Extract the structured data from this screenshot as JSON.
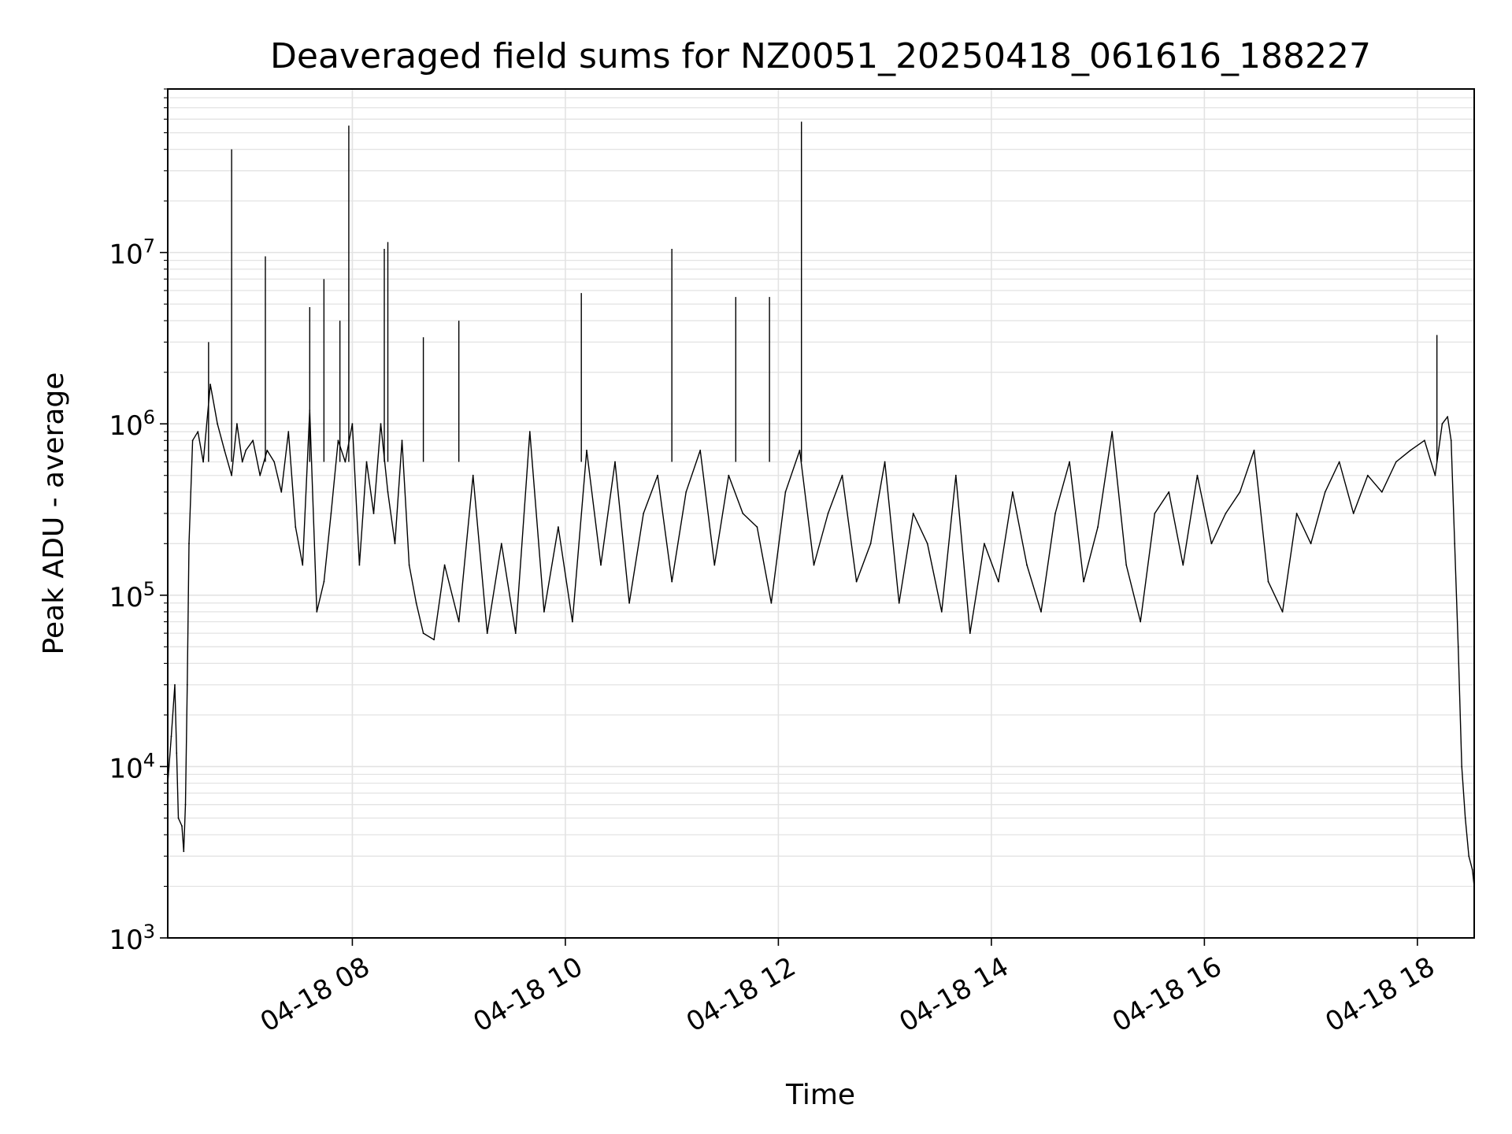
{
  "chart_data": {
    "type": "line",
    "title": "Deaveraged field sums for NZ0051_20250418_061616_188227",
    "xlabel": "Time",
    "ylabel": "Peak ADU - average",
    "yscale": "log",
    "ylim": [
      1000,
      90000000
    ],
    "xlim": [
      "04-18 06:16",
      "04-18 18:32"
    ],
    "grid": true,
    "x_ticks": [
      {
        "value": "04-18 08:00",
        "label": "04-18 08"
      },
      {
        "value": "04-18 10:00",
        "label": "04-18 10"
      },
      {
        "value": "04-18 12:00",
        "label": "04-18 12"
      },
      {
        "value": "04-18 14:00",
        "label": "04-18 14"
      },
      {
        "value": "04-18 16:00",
        "label": "04-18 16"
      },
      {
        "value": "04-18 18:00",
        "label": "04-18 18"
      }
    ],
    "y_ticks": [
      {
        "value": 1000,
        "base": "10",
        "exp": "3"
      },
      {
        "value": 10000,
        "base": "10",
        "exp": "4"
      },
      {
        "value": 100000,
        "base": "10",
        "exp": "5"
      },
      {
        "value": 1000000,
        "base": "10",
        "exp": "6"
      },
      {
        "value": 10000000,
        "base": "10",
        "exp": "7"
      }
    ],
    "series": [
      {
        "color": "#000000",
        "x": [
          "04-18 06:16",
          "04-18 06:18",
          "04-18 06:20",
          "04-18 06:21",
          "04-18 06:22",
          "04-18 06:24",
          "04-18 06:25",
          "04-18 06:26",
          "04-18 06:27",
          "04-18 06:28",
          "04-18 06:30",
          "04-18 06:33",
          "04-18 06:36",
          "04-18 06:40",
          "04-18 06:44",
          "04-18 06:48",
          "04-18 06:52",
          "04-18 06:55",
          "04-18 06:58",
          "04-18 07:00",
          "04-18 07:04",
          "04-18 07:08",
          "04-18 07:12",
          "04-18 07:16",
          "04-18 07:20",
          "04-18 07:24",
          "04-18 07:28",
          "04-18 07:32",
          "04-18 07:36",
          "04-18 07:40",
          "04-18 07:44",
          "04-18 07:48",
          "04-18 07:52",
          "04-18 07:56",
          "04-18 08:00",
          "04-18 08:04",
          "04-18 08:08",
          "04-18 08:12",
          "04-18 08:16",
          "04-18 08:20",
          "04-18 08:24",
          "04-18 08:28",
          "04-18 08:32",
          "04-18 08:36",
          "04-18 08:40",
          "04-18 08:46",
          "04-18 08:52",
          "04-18 09:00",
          "04-18 09:08",
          "04-18 09:16",
          "04-18 09:24",
          "04-18 09:32",
          "04-18 09:40",
          "04-18 09:48",
          "04-18 09:56",
          "04-18 10:04",
          "04-18 10:12",
          "04-18 10:20",
          "04-18 10:28",
          "04-18 10:36",
          "04-18 10:44",
          "04-18 10:52",
          "04-18 11:00",
          "04-18 11:08",
          "04-18 11:16",
          "04-18 11:24",
          "04-18 11:32",
          "04-18 11:40",
          "04-18 11:48",
          "04-18 11:56",
          "04-18 12:04",
          "04-18 12:12",
          "04-18 12:20",
          "04-18 12:28",
          "04-18 12:36",
          "04-18 12:44",
          "04-18 12:52",
          "04-18 13:00",
          "04-18 13:08",
          "04-18 13:16",
          "04-18 13:24",
          "04-18 13:32",
          "04-18 13:40",
          "04-18 13:48",
          "04-18 13:56",
          "04-18 14:04",
          "04-18 14:12",
          "04-18 14:20",
          "04-18 14:28",
          "04-18 14:36",
          "04-18 14:44",
          "04-18 14:52",
          "04-18 15:00",
          "04-18 15:08",
          "04-18 15:16",
          "04-18 15:24",
          "04-18 15:32",
          "04-18 15:40",
          "04-18 15:48",
          "04-18 15:56",
          "04-18 16:04",
          "04-18 16:12",
          "04-18 16:20",
          "04-18 16:28",
          "04-18 16:36",
          "04-18 16:44",
          "04-18 16:52",
          "04-18 17:00",
          "04-18 17:08",
          "04-18 17:16",
          "04-18 17:24",
          "04-18 17:32",
          "04-18 17:40",
          "04-18 17:48",
          "04-18 17:56",
          "04-18 18:04",
          "04-18 18:10",
          "04-18 18:14",
          "04-18 18:17",
          "04-18 18:19",
          "04-18 18:21",
          "04-18 18:23",
          "04-18 18:25",
          "04-18 18:27",
          "04-18 18:29",
          "04-18 18:31",
          "04-18 18:32"
        ],
        "y": [
          8000,
          15000,
          30000,
          12000,
          5000,
          4500,
          3200,
          6000,
          30000,
          200000,
          800000,
          900000,
          600000,
          1700000,
          1000000,
          700000,
          500000,
          1000000,
          600000,
          700000,
          800000,
          500000,
          700000,
          600000,
          400000,
          900000,
          250000,
          150000,
          1200000,
          80000,
          120000,
          300000,
          800000,
          600000,
          1000000,
          150000,
          600000,
          300000,
          1000000,
          400000,
          200000,
          800000,
          150000,
          90000,
          60000,
          55000,
          150000,
          70000,
          500000,
          60000,
          200000,
          60000,
          900000,
          80000,
          250000,
          70000,
          700000,
          150000,
          600000,
          90000,
          300000,
          500000,
          120000,
          400000,
          700000,
          150000,
          500000,
          300000,
          250000,
          90000,
          400000,
          700000,
          150000,
          300000,
          500000,
          120000,
          200000,
          600000,
          90000,
          300000,
          200000,
          80000,
          500000,
          60000,
          200000,
          120000,
          400000,
          150000,
          80000,
          300000,
          600000,
          120000,
          250000,
          900000,
          150000,
          70000,
          300000,
          400000,
          150000,
          500000,
          200000,
          300000,
          400000,
          700000,
          120000,
          80000,
          300000,
          200000,
          400000,
          600000,
          300000,
          500000,
          400000,
          600000,
          700000,
          800000,
          500000,
          1000000,
          1100000,
          800000,
          200000,
          50000,
          10000,
          5000,
          3000,
          2500,
          2000
        ]
      }
    ],
    "spikes": [
      {
        "x": "04-18 06:39",
        "y": 3000000
      },
      {
        "x": "04-18 06:52",
        "y": 40000000
      },
      {
        "x": "04-18 07:11",
        "y": 9500000
      },
      {
        "x": "04-18 07:36",
        "y": 4800000
      },
      {
        "x": "04-18 07:44",
        "y": 7000000
      },
      {
        "x": "04-18 07:53",
        "y": 4000000
      },
      {
        "x": "04-18 07:58",
        "y": 55000000
      },
      {
        "x": "04-18 08:18",
        "y": 10500000
      },
      {
        "x": "04-18 08:20",
        "y": 11500000
      },
      {
        "x": "04-18 08:40",
        "y": 3200000
      },
      {
        "x": "04-18 09:00",
        "y": 4000000
      },
      {
        "x": "04-18 10:09",
        "y": 5800000
      },
      {
        "x": "04-18 11:00",
        "y": 10500000
      },
      {
        "x": "04-18 11:36",
        "y": 5500000
      },
      {
        "x": "04-18 11:55",
        "y": 5500000
      },
      {
        "x": "04-18 12:13",
        "y": 58000000
      },
      {
        "x": "04-18 18:11",
        "y": 3300000
      }
    ]
  }
}
